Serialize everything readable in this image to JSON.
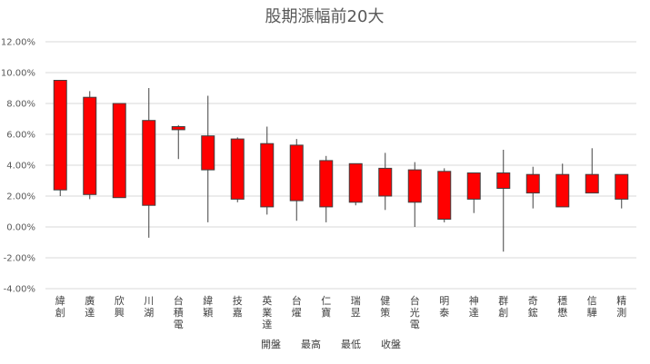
{
  "chart_data": {
    "type": "candlestick",
    "title": "股期漲幅前20大",
    "ylim": [
      -4,
      12
    ],
    "yticks": [
      "-4.00%",
      "-2.00%",
      "0.00%",
      "2.00%",
      "4.00%",
      "6.00%",
      "8.00%",
      "10.00%",
      "12.00%"
    ],
    "ytick_values": [
      -4,
      -2,
      0,
      2,
      4,
      6,
      8,
      10,
      12
    ],
    "legend": [
      "開盤",
      "最高",
      "最低",
      "收盤"
    ],
    "categories": [
      "緯創",
      "廣達",
      "欣興",
      "川湖",
      "台積電",
      "緯穎",
      "技嘉",
      "英業達",
      "台燿",
      "仁寶",
      "瑞昱",
      "健策",
      "台光電",
      "明泰",
      "神達",
      "群創",
      "奇鋐",
      "穩懋",
      "信驊",
      "精測"
    ],
    "series": [
      {
        "name": "開盤",
        "values": [
          2.4,
          2.1,
          1.9,
          1.4,
          6.3,
          3.7,
          1.8,
          1.3,
          1.7,
          1.3,
          1.6,
          2.0,
          1.6,
          0.5,
          1.8,
          2.5,
          2.2,
          1.3,
          2.2,
          1.8
        ]
      },
      {
        "name": "最高",
        "values": [
          9.5,
          8.8,
          8.0,
          9.0,
          6.6,
          8.5,
          5.8,
          6.5,
          5.7,
          4.6,
          4.1,
          4.8,
          4.2,
          3.8,
          3.5,
          5.0,
          3.9,
          4.1,
          5.1,
          3.4
        ]
      },
      {
        "name": "最低",
        "values": [
          2.0,
          1.8,
          1.9,
          -0.7,
          4.4,
          0.3,
          1.6,
          0.8,
          0.4,
          0.3,
          1.4,
          1.1,
          0.0,
          0.3,
          0.9,
          -1.6,
          1.2,
          1.3,
          2.2,
          1.2
        ]
      },
      {
        "name": "收盤",
        "values": [
          9.5,
          8.4,
          8.0,
          6.9,
          6.5,
          5.9,
          5.7,
          5.4,
          5.3,
          4.3,
          4.1,
          3.8,
          3.7,
          3.6,
          3.5,
          3.5,
          3.4,
          3.4,
          3.4,
          3.4
        ]
      }
    ]
  }
}
